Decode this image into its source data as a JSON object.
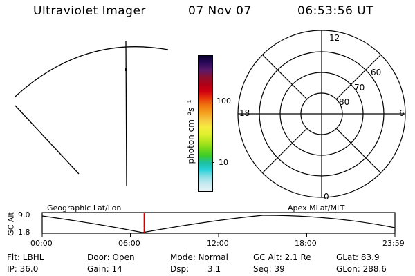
{
  "header": {
    "title": "Ultraviolet Imager",
    "date": "07 Nov 07",
    "time": "06:53:56 UT"
  },
  "colorbar": {
    "unit_label": "photon cm⁻²s⁻¹",
    "ticks": [
      "100",
      "10"
    ],
    "colors": [
      "#0a0030",
      "#2a0a5a",
      "#5a1a6a",
      "#8a1030",
      "#b00018",
      "#d00010",
      "#e83a0a",
      "#f07810",
      "#f4a020",
      "#f6c840",
      "#f6ec40",
      "#e0f030",
      "#b4e61e",
      "#7ad81a",
      "#3ccc28",
      "#1cc0a0",
      "#28d0d8",
      "#8ee0e6",
      "#c8eaf0",
      "#e8f2f4"
    ]
  },
  "polar": {
    "ring_labels": [
      "60",
      "70",
      "80"
    ],
    "mlt_labels": {
      "top": "12",
      "right": "6",
      "bottom": "0",
      "left": "18"
    }
  },
  "timeline": {
    "left_title": "Geographic Lat/Lon",
    "right_title": "Apex MLat/MLT",
    "y_axis_label": "GC Alt",
    "y_ticks": [
      "9.0",
      "1.8"
    ],
    "x_ticks": [
      "00:00",
      "06:00",
      "12:00",
      "18:00",
      "23:59"
    ],
    "current_time_fraction": 0.289,
    "marker_color": "#d00000"
  },
  "info": {
    "flt": "Flt: LBHL",
    "ip": "IP: 36.0",
    "door": "Door: Open",
    "gain": "Gain: 14",
    "mode": "Mode: Normal",
    "dsp_label": "Dsp:",
    "dsp_value": "3.1",
    "gc_alt": "GC Alt: 2.1 Re",
    "seq": "Seq: 39",
    "glat": "GLat:  83.9",
    "glon": "GLon: 288.6"
  }
}
